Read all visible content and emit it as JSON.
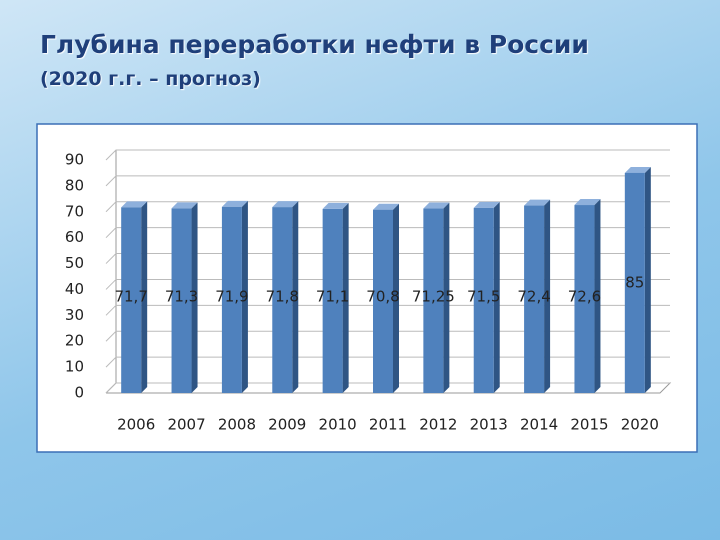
{
  "chart_data": {
    "type": "bar3d",
    "title": "Глубина переработки нефти в России",
    "subtitle": "(2020 г.г. – прогноз)",
    "categories": [
      "2006",
      "2007",
      "2008",
      "2009",
      "2010",
      "2011",
      "2012",
      "2013",
      "2014",
      "2015",
      "2020"
    ],
    "values": [
      71.7,
      71.3,
      71.9,
      71.8,
      71.1,
      70.8,
      71.25,
      71.5,
      72.4,
      72.6,
      85
    ],
    "value_labels": [
      "71,7",
      "71,3",
      "71,9",
      "71,8",
      "71,1",
      "70,8",
      "71,25",
      "71,5",
      "72,4",
      "72,6",
      "85"
    ],
    "color": "#4f81bd",
    "ylim": [
      0,
      90
    ],
    "yticks": [
      0,
      10,
      20,
      30,
      40,
      50,
      60,
      70,
      80,
      90
    ],
    "grid": true
  }
}
